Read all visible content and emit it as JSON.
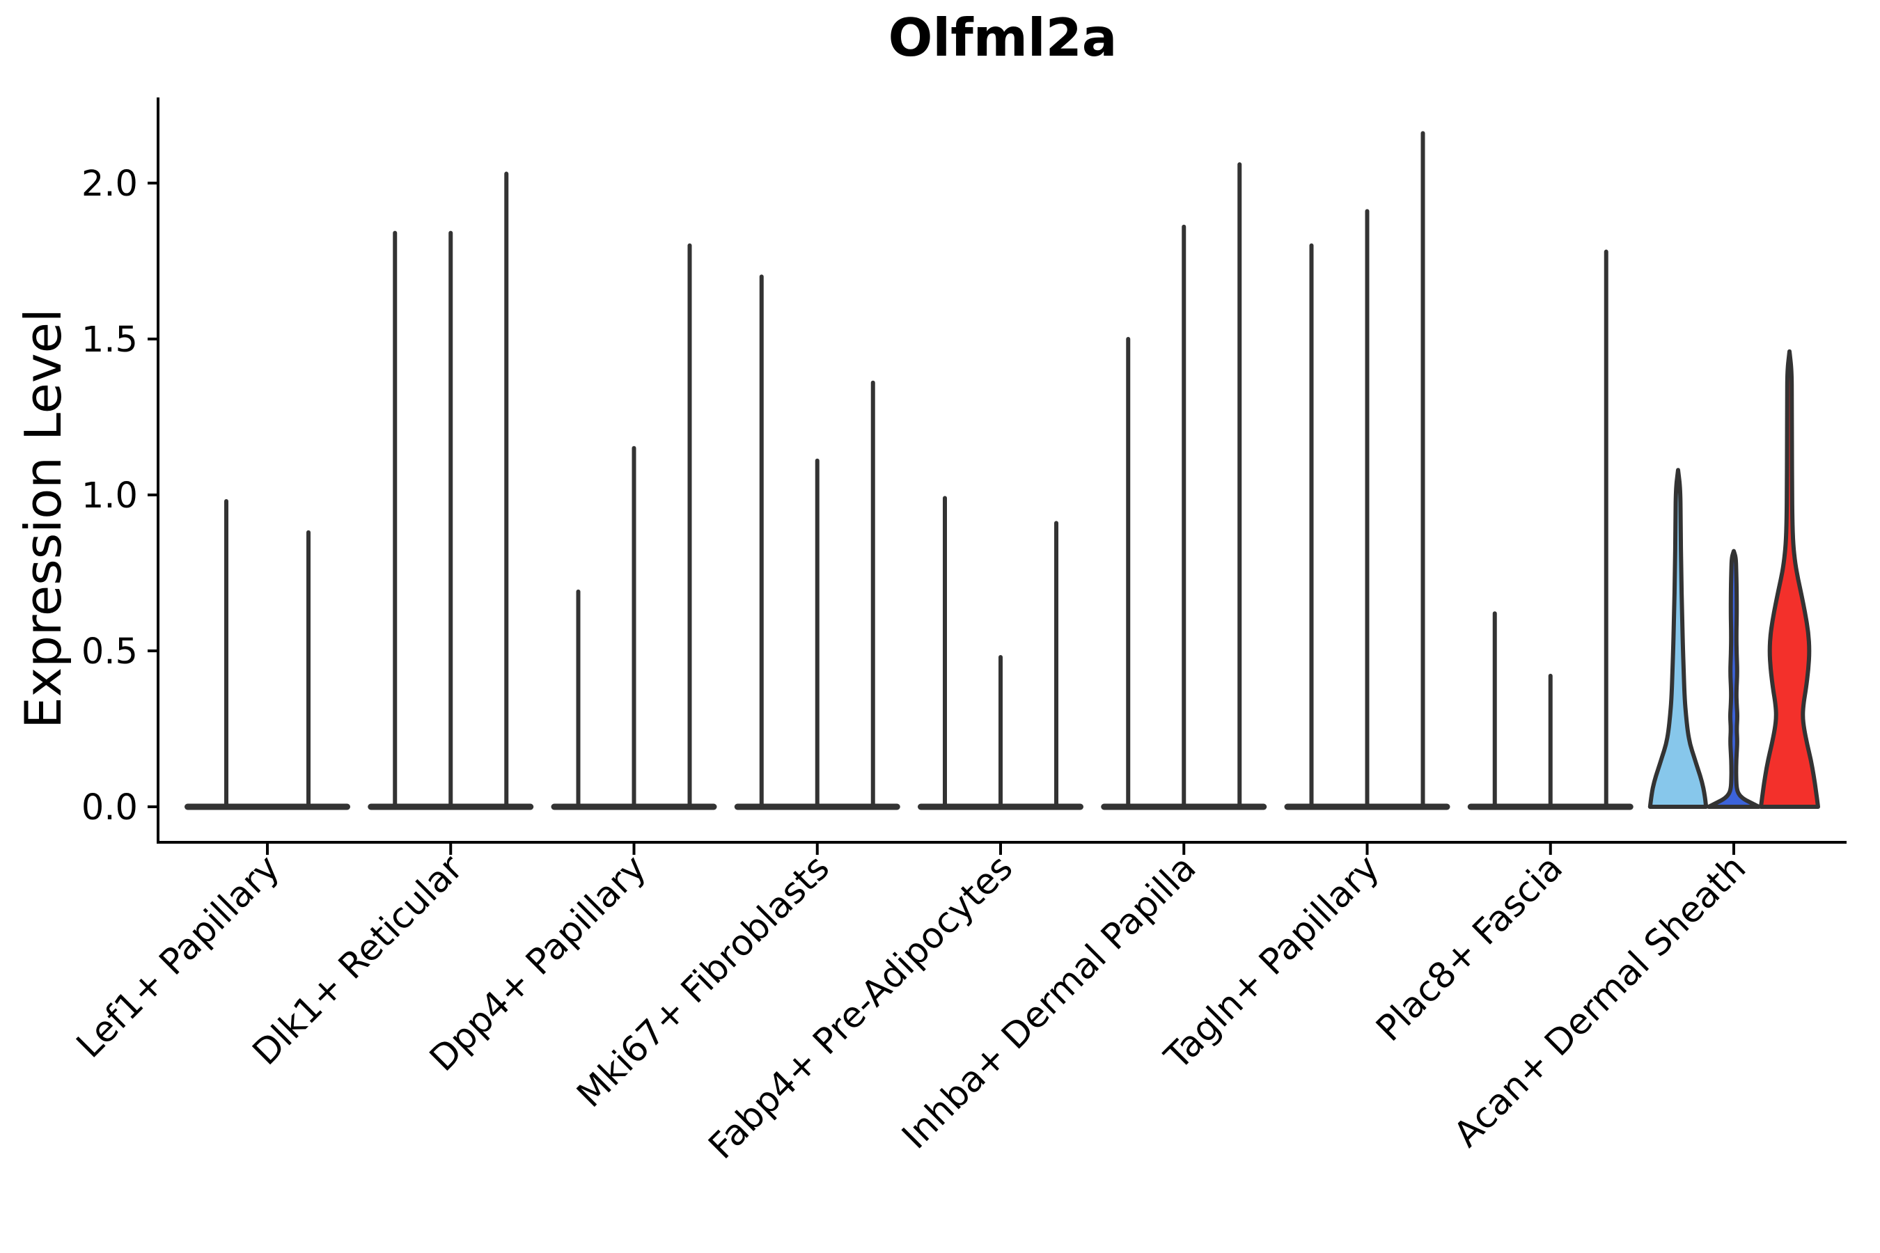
{
  "title": "Olfml2a",
  "axes": {
    "y_label": "Expression Level",
    "y_tick_labels": [
      "0.0",
      "0.5",
      "1.0",
      "1.5",
      "2.0"
    ],
    "y_tick_values": [
      0.0,
      0.5,
      1.0,
      1.5,
      2.0
    ]
  },
  "chart_data": {
    "type": "violin",
    "title": "Olfml2a",
    "xlabel": "",
    "ylabel": "Expression Level",
    "ylim": [
      -0.11,
      2.27
    ],
    "yticks": [
      0.0,
      0.5,
      1.0,
      1.5,
      2.0
    ],
    "grid": false,
    "legend": "none",
    "categories": [
      "Lef1+ Papillary",
      "Dlk1+ Reticular",
      "Dpp4+ Papillary",
      "Mki67+ Fibroblasts",
      "Fabp4+ Pre-Adipocytes",
      "Inhba+ Dermal Papilla",
      "Tagln+ Papillary",
      "Plac8+ Fascia",
      "Acan+ Dermal Sheath"
    ],
    "groups": [
      {
        "category": "Lef1+ Papillary",
        "violins": [
          {
            "max": 0.98,
            "shape": "collapsed"
          },
          {
            "max": 0.88,
            "shape": "collapsed"
          }
        ]
      },
      {
        "category": "Dlk1+ Reticular",
        "violins": [
          {
            "max": 1.84,
            "shape": "collapsed"
          },
          {
            "max": 1.84,
            "shape": "collapsed"
          },
          {
            "max": 2.03,
            "shape": "collapsed"
          }
        ]
      },
      {
        "category": "Dpp4+ Papillary",
        "violins": [
          {
            "max": 0.69,
            "shape": "collapsed"
          },
          {
            "max": 1.15,
            "shape": "collapsed"
          },
          {
            "max": 1.8,
            "shape": "collapsed"
          }
        ]
      },
      {
        "category": "Mki67+ Fibroblasts",
        "violins": [
          {
            "max": 1.7,
            "shape": "collapsed"
          },
          {
            "max": 1.11,
            "shape": "collapsed"
          },
          {
            "max": 1.36,
            "shape": "collapsed"
          }
        ]
      },
      {
        "category": "Fabp4+ Pre-Adipocytes",
        "violins": [
          {
            "max": 0.99,
            "shape": "collapsed"
          },
          {
            "max": 0.48,
            "shape": "collapsed"
          },
          {
            "max": 0.91,
            "shape": "collapsed"
          }
        ]
      },
      {
        "category": "Inhba+ Dermal Papilla",
        "violins": [
          {
            "max": 1.5,
            "shape": "collapsed"
          },
          {
            "max": 1.86,
            "shape": "collapsed"
          },
          {
            "max": 2.06,
            "shape": "collapsed"
          }
        ]
      },
      {
        "category": "Tagln+ Papillary",
        "violins": [
          {
            "max": 1.8,
            "shape": "collapsed"
          },
          {
            "max": 1.91,
            "shape": "collapsed"
          },
          {
            "max": 2.16,
            "shape": "collapsed"
          }
        ]
      },
      {
        "category": "Plac8+ Fascia",
        "violins": [
          {
            "max": 0.62,
            "shape": "collapsed"
          },
          {
            "max": 0.42,
            "shape": "collapsed"
          },
          {
            "max": 1.78,
            "shape": "collapsed"
          }
        ]
      },
      {
        "category": "Acan+ Dermal Sheath",
        "violins": [
          {
            "max": 1.08,
            "shape": "kde",
            "fill": "#87C7EB",
            "profile": [
              [
                0.0,
                0.98
              ],
              [
                0.04,
                0.93
              ],
              [
                0.08,
                0.84
              ],
              [
                0.12,
                0.7
              ],
              [
                0.16,
                0.56
              ],
              [
                0.2,
                0.42
              ],
              [
                0.24,
                0.34
              ],
              [
                0.3,
                0.27
              ],
              [
                0.36,
                0.225
              ],
              [
                0.44,
                0.195
              ],
              [
                0.52,
                0.165
              ],
              [
                0.62,
                0.14
              ],
              [
                0.75,
                0.11
              ],
              [
                0.9,
                0.09
              ],
              [
                1.02,
                0.08
              ],
              [
                1.08,
                0.0
              ]
            ]
          },
          {
            "max": 0.82,
            "shape": "kde",
            "fill": "#3C63DA",
            "profile": [
              [
                0.0,
                0.88
              ],
              [
                0.012,
                0.62
              ],
              [
                0.025,
                0.34
              ],
              [
                0.04,
                0.17
              ],
              [
                0.06,
                0.1
              ],
              [
                0.09,
                0.085
              ],
              [
                0.13,
                0.082
              ],
              [
                0.17,
                0.1
              ],
              [
                0.21,
                0.125
              ],
              [
                0.25,
                0.1
              ],
              [
                0.29,
                0.13
              ],
              [
                0.33,
                0.1
              ],
              [
                0.37,
                0.09
              ],
              [
                0.43,
                0.125
              ],
              [
                0.49,
                0.1
              ],
              [
                0.55,
                0.09
              ],
              [
                0.62,
                0.105
              ],
              [
                0.7,
                0.1
              ],
              [
                0.76,
                0.085
              ],
              [
                0.8,
                0.07
              ],
              [
                0.82,
                0.0
              ]
            ]
          },
          {
            "max": 1.46,
            "shape": "kde",
            "fill": "#F3302B",
            "profile": [
              [
                0.0,
                1.0
              ],
              [
                0.05,
                0.93
              ],
              [
                0.1,
                0.85
              ],
              [
                0.15,
                0.75
              ],
              [
                0.2,
                0.62
              ],
              [
                0.25,
                0.51
              ],
              [
                0.29,
                0.46
              ],
              [
                0.33,
                0.49
              ],
              [
                0.38,
                0.58
              ],
              [
                0.44,
                0.66
              ],
              [
                0.5,
                0.7
              ],
              [
                0.56,
                0.66
              ],
              [
                0.62,
                0.55
              ],
              [
                0.68,
                0.42
              ],
              [
                0.73,
                0.3
              ],
              [
                0.78,
                0.2
              ],
              [
                0.84,
                0.13
              ],
              [
                0.92,
                0.1
              ],
              [
                1.02,
                0.09
              ],
              [
                1.15,
                0.085
              ],
              [
                1.3,
                0.08
              ],
              [
                1.4,
                0.075
              ],
              [
                1.46,
                0.0
              ]
            ]
          }
        ]
      }
    ],
    "colors": {
      "outline": "#333333",
      "spike": "#333333",
      "axis": "#000000",
      "fills": [
        "#87C7EB",
        "#3C63DA",
        "#F3302B"
      ]
    }
  }
}
